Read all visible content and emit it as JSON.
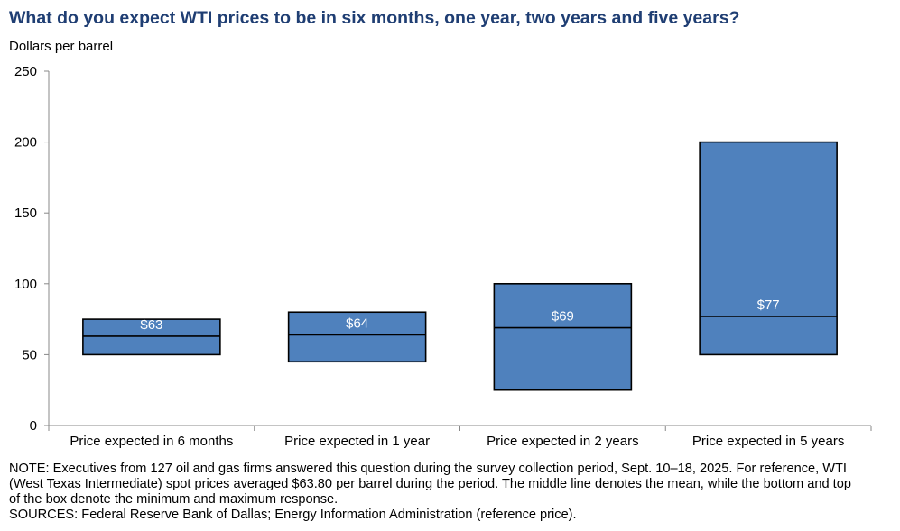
{
  "chart_data": {
    "type": "box",
    "title": "What do you expect WTI prices to be in six months, one year, two years and five years?",
    "ylabel": "Dollars  per barrel",
    "ylim": [
      0,
      250
    ],
    "yticks": [
      0,
      50,
      100,
      150,
      200,
      250
    ],
    "grid": false,
    "categories": [
      "Price expected in 6 months",
      "Price expected in 1 year",
      "Price expected in 2 years",
      "Price expected in 5 years"
    ],
    "min": [
      50,
      45,
      25,
      50
    ],
    "mean": [
      63,
      64,
      69,
      77
    ],
    "max": [
      75,
      80,
      100,
      200
    ],
    "labels": [
      "$63",
      "$64",
      "$69",
      "$77"
    ],
    "box_color": "#4f81bd",
    "outline_color": "#000000"
  },
  "notes": {
    "note": "NOTE:  Executives  from 127 oil and gas firms answered this question during the survey collection period, Sept.  10–18, 2025. For reference, WTI (West Texas  Intermediate)  spot prices averaged $63.80 per barrel during the period. The middle line denotes the mean, while the bottom  and top of the box denote the minimum  and maximum  response.",
    "sources": "SOURCES:  Federal Reserve Bank of Dallas;  Energy Information Administration  (reference price)."
  }
}
